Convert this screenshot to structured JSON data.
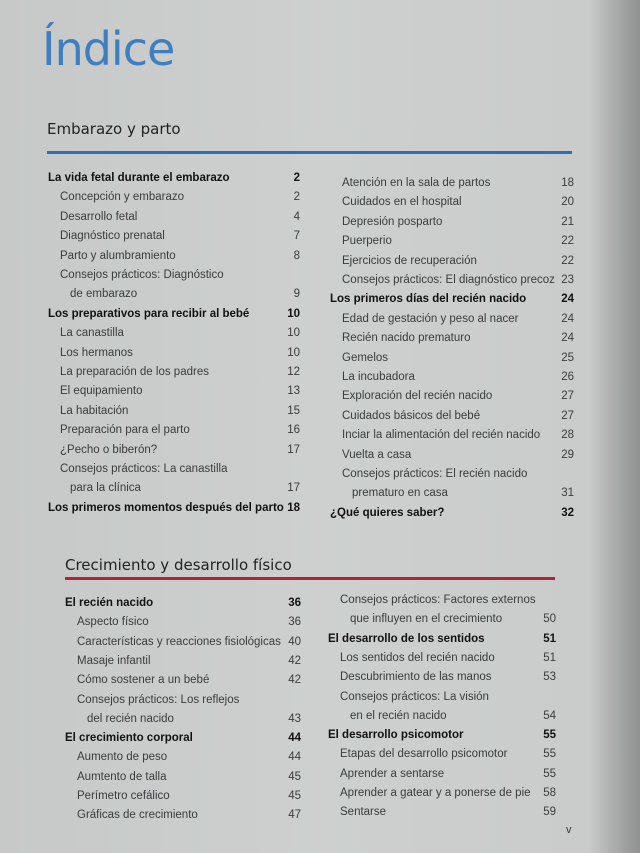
{
  "title": "Índice",
  "sections": [
    {
      "heading": "Embarazo y parto",
      "rule_color": "#2f6fb5",
      "columns": [
        [
          {
            "text": "La vida fetal durante el embarazo",
            "page": "2",
            "level": 0
          },
          {
            "text": "Concepción y embarazo",
            "page": "2",
            "level": 1
          },
          {
            "text": "Desarrollo fetal",
            "page": "4",
            "level": 1
          },
          {
            "text": "Diagnóstico prenatal",
            "page": "7",
            "level": 1
          },
          {
            "text": "Parto y alumbramiento",
            "page": "8",
            "level": 1
          },
          {
            "text": "Consejos prácticos: Diagnóstico",
            "page": "",
            "level": 1
          },
          {
            "text": "de embarazo",
            "page": "9",
            "level": 2
          },
          {
            "text": "Los preparativos para recibir al bebé",
            "page": "10",
            "level": 0
          },
          {
            "text": "La canastilla",
            "page": "10",
            "level": 1
          },
          {
            "text": "Los hermanos",
            "page": "10",
            "level": 1
          },
          {
            "text": "La preparación de los padres",
            "page": "12",
            "level": 1
          },
          {
            "text": "El equipamiento",
            "page": "13",
            "level": 1
          },
          {
            "text": "La habitación",
            "page": "15",
            "level": 1
          },
          {
            "text": "Preparación para el parto",
            "page": "16",
            "level": 1
          },
          {
            "text": "¿Pecho o biberón?",
            "page": "17",
            "level": 1
          },
          {
            "text": "Consejos prácticos: La canastilla",
            "page": "",
            "level": 1
          },
          {
            "text": "para la clínica",
            "page": "17",
            "level": 2
          },
          {
            "text": "Los primeros momentos después del parto",
            "page": "18",
            "level": 0
          }
        ],
        [
          {
            "text": "Atención en la sala de partos",
            "page": "18",
            "level": 1
          },
          {
            "text": "Cuidados en el hospital",
            "page": "20",
            "level": 1
          },
          {
            "text": "Depresión posparto",
            "page": "21",
            "level": 1
          },
          {
            "text": "Puerperio",
            "page": "22",
            "level": 1
          },
          {
            "text": "Ejercicios de recuperación",
            "page": "22",
            "level": 1
          },
          {
            "text": "Consejos prácticos: El diagnóstico precoz",
            "page": "23",
            "level": 1
          },
          {
            "text": "Los primeros días del recién nacido",
            "page": "24",
            "level": 0
          },
          {
            "text": "Edad de gestación y peso al nacer",
            "page": "24",
            "level": 1
          },
          {
            "text": "Recién nacido prematuro",
            "page": "24",
            "level": 1
          },
          {
            "text": "Gemelos",
            "page": "25",
            "level": 1
          },
          {
            "text": "La incubadora",
            "page": "26",
            "level": 1
          },
          {
            "text": "Exploración del recién nacido",
            "page": "27",
            "level": 1
          },
          {
            "text": "Cuidados básicos del bebé",
            "page": "27",
            "level": 1
          },
          {
            "text": "Inciar la alimentación del recién nacido",
            "page": "28",
            "level": 1
          },
          {
            "text": "Vuelta a casa",
            "page": "29",
            "level": 1
          },
          {
            "text": "Consejos prácticos: El recién nacido",
            "page": "",
            "level": 1
          },
          {
            "text": "prematuro en casa",
            "page": "31",
            "level": 2
          },
          {
            "text": "¿Qué quieres saber?",
            "page": "32",
            "level": 0
          }
        ]
      ]
    },
    {
      "heading": "Crecimiento y desarrollo físico",
      "rule_color": "#b0243a",
      "columns": [
        [
          {
            "text": "El recién nacido",
            "page": "36",
            "level": 0
          },
          {
            "text": "Aspecto físico",
            "page": "36",
            "level": 1
          },
          {
            "text": "Características y reacciones fisiológicas",
            "page": "40",
            "level": 1
          },
          {
            "text": "Masaje infantil",
            "page": "42",
            "level": 1
          },
          {
            "text": "Cómo sostener a un bebé",
            "page": "42",
            "level": 1
          },
          {
            "text": "Consejos prácticos: Los reflejos",
            "page": "",
            "level": 1
          },
          {
            "text": "del recién nacido",
            "page": "43",
            "level": 2
          },
          {
            "text": "El crecimiento corporal",
            "page": "44",
            "level": 0
          },
          {
            "text": "Aumento de peso",
            "page": "44",
            "level": 1
          },
          {
            "text": "Aumtento de talla",
            "page": "45",
            "level": 1
          },
          {
            "text": "Perímetro cefálico",
            "page": "45",
            "level": 1
          },
          {
            "text": "Gráficas de crecimiento",
            "page": "47",
            "level": 1
          }
        ],
        [
          {
            "text": "Consejos prácticos: Factores externos",
            "page": "",
            "level": 1
          },
          {
            "text": "que influyen en el crecimiento",
            "page": "50",
            "level": 2
          },
          {
            "text": "El desarrollo de los sentidos",
            "page": "51",
            "level": 0
          },
          {
            "text": "Los sentidos del recién nacido",
            "page": "51",
            "level": 1
          },
          {
            "text": "Descubrimiento de las manos",
            "page": "53",
            "level": 1
          },
          {
            "text": "Consejos prácticos: La visión",
            "page": "",
            "level": 1
          },
          {
            "text": "en el recién nacido",
            "page": "54",
            "level": 2
          },
          {
            "text": "El desarrollo psicomotor",
            "page": "55",
            "level": 0
          },
          {
            "text": "Etapas del desarrollo psicomotor",
            "page": "55",
            "level": 1
          },
          {
            "text": "Aprender a sentarse",
            "page": "55",
            "level": 1
          },
          {
            "text": "Aprender a gatear y a ponerse de pie",
            "page": "58",
            "level": 1
          },
          {
            "text": "Sentarse",
            "page": "59",
            "level": 1
          }
        ]
      ]
    }
  ],
  "footer": {
    "page_number": "v"
  }
}
